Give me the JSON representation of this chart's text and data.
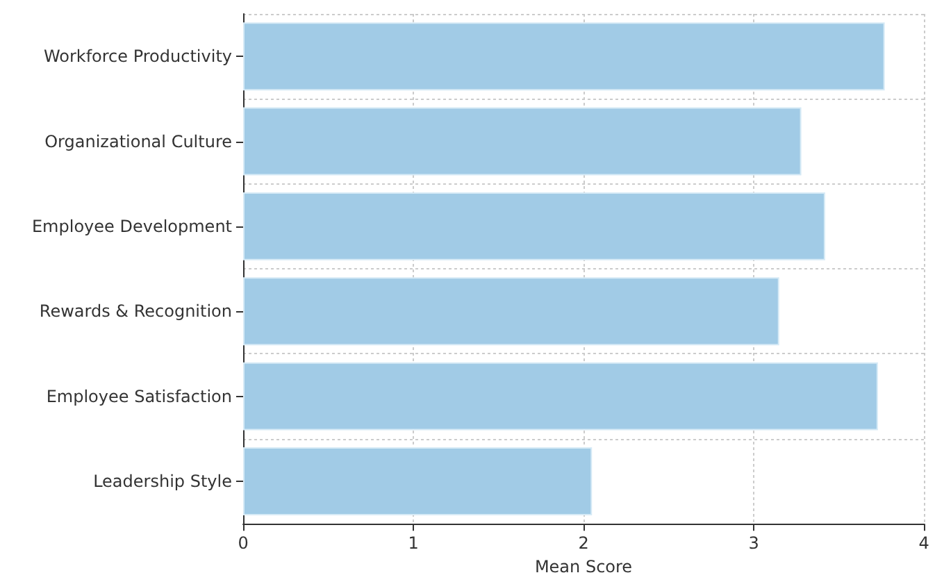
{
  "chart_data": {
    "type": "bar",
    "orientation": "horizontal",
    "xlabel": "Mean Score",
    "categories": [
      "Workforce Productivity",
      "Organizational Culture",
      "Employee Development",
      "Rewards & Recognition",
      "Employee Satisfaction",
      "Leadership Style"
    ],
    "values": [
      3.77,
      3.28,
      3.42,
      3.15,
      3.73,
      2.05
    ],
    "color": "#a1cbe6",
    "xlim": [
      0,
      4
    ],
    "xticks": [
      0,
      1,
      2,
      3,
      4
    ],
    "grid": true
  }
}
